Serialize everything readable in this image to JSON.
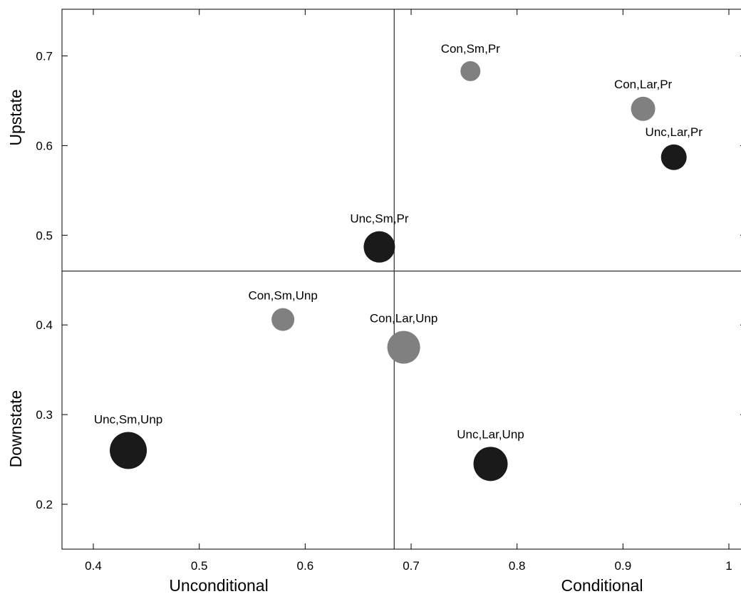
{
  "chart_data": {
    "type": "scatter",
    "xlim": [
      0.37,
      1.02
    ],
    "ylim": [
      0.15,
      0.75
    ],
    "xticks": [
      0.4,
      0.5,
      0.6,
      0.7,
      0.8,
      0.9,
      1
    ],
    "xtick_labels": [
      "0.4",
      "0.5",
      "0.6",
      "0.7",
      "0.8",
      "0.9",
      "1"
    ],
    "yticks": [
      0.2,
      0.3,
      0.4,
      0.5,
      0.6,
      0.7
    ],
    "ytick_labels": [
      "0.2",
      "0.3",
      "0.4",
      "0.5",
      "0.6",
      "0.7"
    ],
    "divider_x": 0.684,
    "divider_y": 0.46,
    "xlabels": {
      "left": "Unconditional",
      "right": "Conditional"
    },
    "ylabels": {
      "top": "Upstate",
      "bottom": "Downstate"
    },
    "grid": false,
    "colors": {
      "Unc": "#1a1a1a",
      "Con": "#808080"
    },
    "points": [
      {
        "label": "Con,Sm,Pr",
        "x": 0.756,
        "y": 0.683,
        "group": "Con",
        "size": 14
      },
      {
        "label": "Con,Lar,Pr",
        "x": 0.919,
        "y": 0.641,
        "group": "Con",
        "size": 17
      },
      {
        "label": "Unc,Lar,Pr",
        "x": 0.948,
        "y": 0.587,
        "group": "Unc",
        "size": 18
      },
      {
        "label": "Unc,Sm,Pr",
        "x": 0.67,
        "y": 0.487,
        "group": "Unc",
        "size": 22
      },
      {
        "label": "Con,Sm,Unp",
        "x": 0.579,
        "y": 0.406,
        "group": "Con",
        "size": 16
      },
      {
        "label": "Con,Lar,Unp",
        "x": 0.693,
        "y": 0.375,
        "group": "Con",
        "size": 23
      },
      {
        "label": "Unc,Sm,Unp",
        "x": 0.433,
        "y": 0.26,
        "group": "Unc",
        "size": 26
      },
      {
        "label": "Unc,Lar,Unp",
        "x": 0.775,
        "y": 0.245,
        "group": "Unc",
        "size": 24
      }
    ]
  }
}
